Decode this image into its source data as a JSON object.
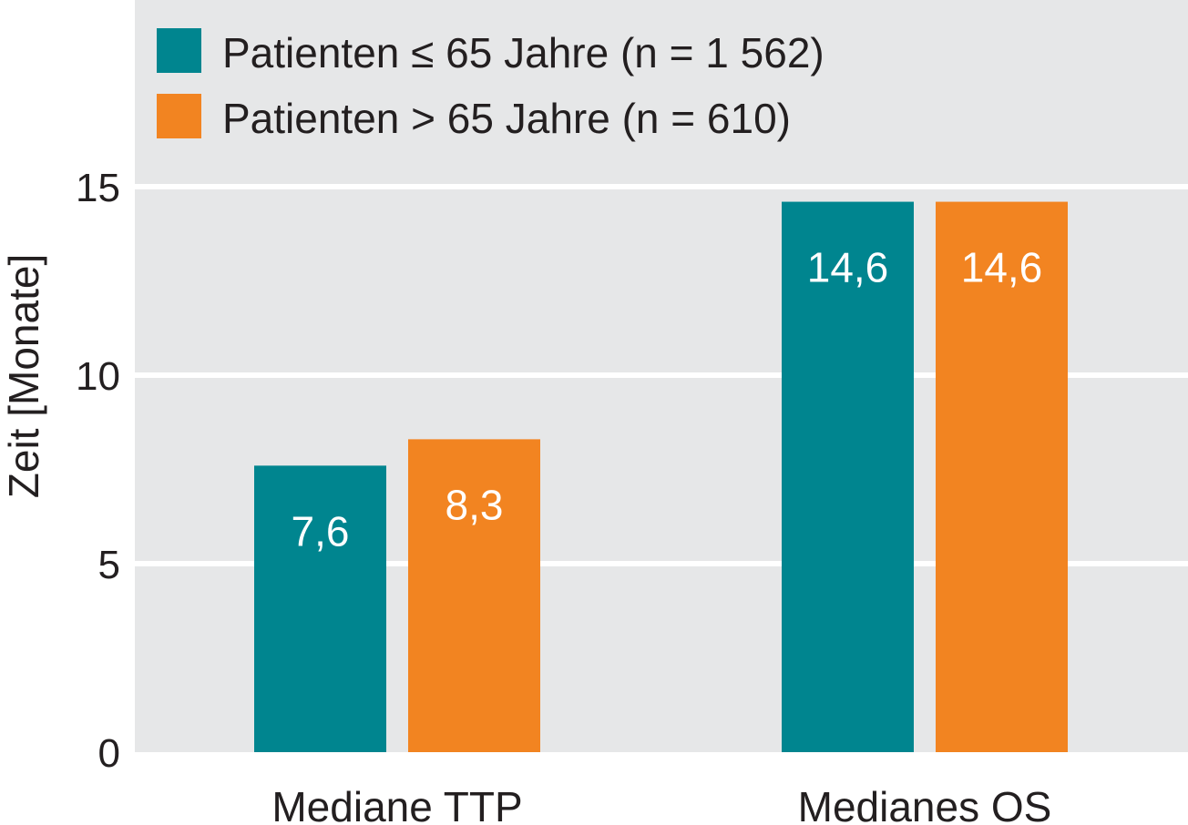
{
  "chart_data": {
    "type": "bar",
    "title": "",
    "xlabel": "",
    "ylabel": "Zeit [Monate]",
    "ylim": [
      0,
      19
    ],
    "yticks": [
      0,
      5,
      10,
      15
    ],
    "grid": true,
    "legend_position": "top-left",
    "categories": [
      "Mediane TTP",
      "Medianes OS"
    ],
    "series": [
      {
        "name": "Patienten ≤ 65 Jahre (n = 1 562)",
        "color": "#00858f",
        "values": [
          7.6,
          14.6
        ],
        "labels": [
          "7,6",
          "14,6"
        ]
      },
      {
        "name": "Patienten > 65 Jahre (n = 610)",
        "color": "#f28421",
        "values": [
          8.3,
          14.6
        ],
        "labels": [
          "8,3",
          "14,6"
        ]
      }
    ],
    "background_color": "#e6e7e8",
    "grid_color": "#ffffff"
  }
}
